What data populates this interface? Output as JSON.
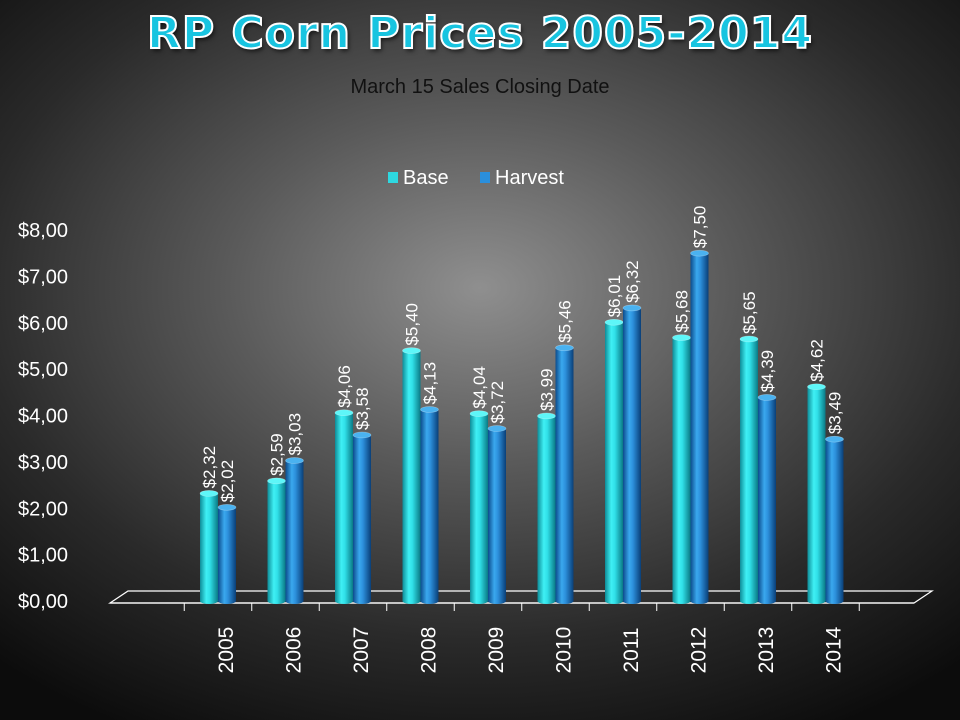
{
  "title": "RP Corn Prices 2005-2014",
  "subtitle": "March 15 Sales Closing Date",
  "colors": {
    "base": "#2ed8e0",
    "harvest": "#2a8fdc"
  },
  "chart_data": {
    "type": "bar",
    "categories": [
      "2005",
      "2006",
      "2007",
      "2008",
      "2009",
      "2010",
      "2011",
      "2012",
      "2013",
      "2014"
    ],
    "series": [
      {
        "name": "Base",
        "values": [
          2.32,
          2.59,
          4.06,
          5.4,
          4.04,
          3.99,
          6.01,
          5.68,
          5.65,
          4.62
        ],
        "labels": [
          "$2,32",
          "$2,59",
          "$4,06",
          "$5,40",
          "$4,04",
          "$3,99",
          "$6,01",
          "$5,68",
          "$5,65",
          "$4,62"
        ]
      },
      {
        "name": "Harvest",
        "values": [
          2.02,
          3.03,
          3.58,
          4.13,
          3.72,
          5.46,
          6.32,
          7.5,
          4.39,
          3.49
        ],
        "labels": [
          "$2,02",
          "$3,03",
          "$3,58",
          "$4,13",
          "$3,72",
          "$5,46",
          "$6,32",
          "$7,50",
          "$4,39",
          "$3,49"
        ]
      }
    ],
    "ylim": [
      0,
      8
    ],
    "yticks": [
      "$0,00",
      "$1,00",
      "$2,00",
      "$3,00",
      "$4,00",
      "$5,00",
      "$6,00",
      "$7,00",
      "$8,00"
    ],
    "legend_position": "top-center",
    "grid": false
  }
}
